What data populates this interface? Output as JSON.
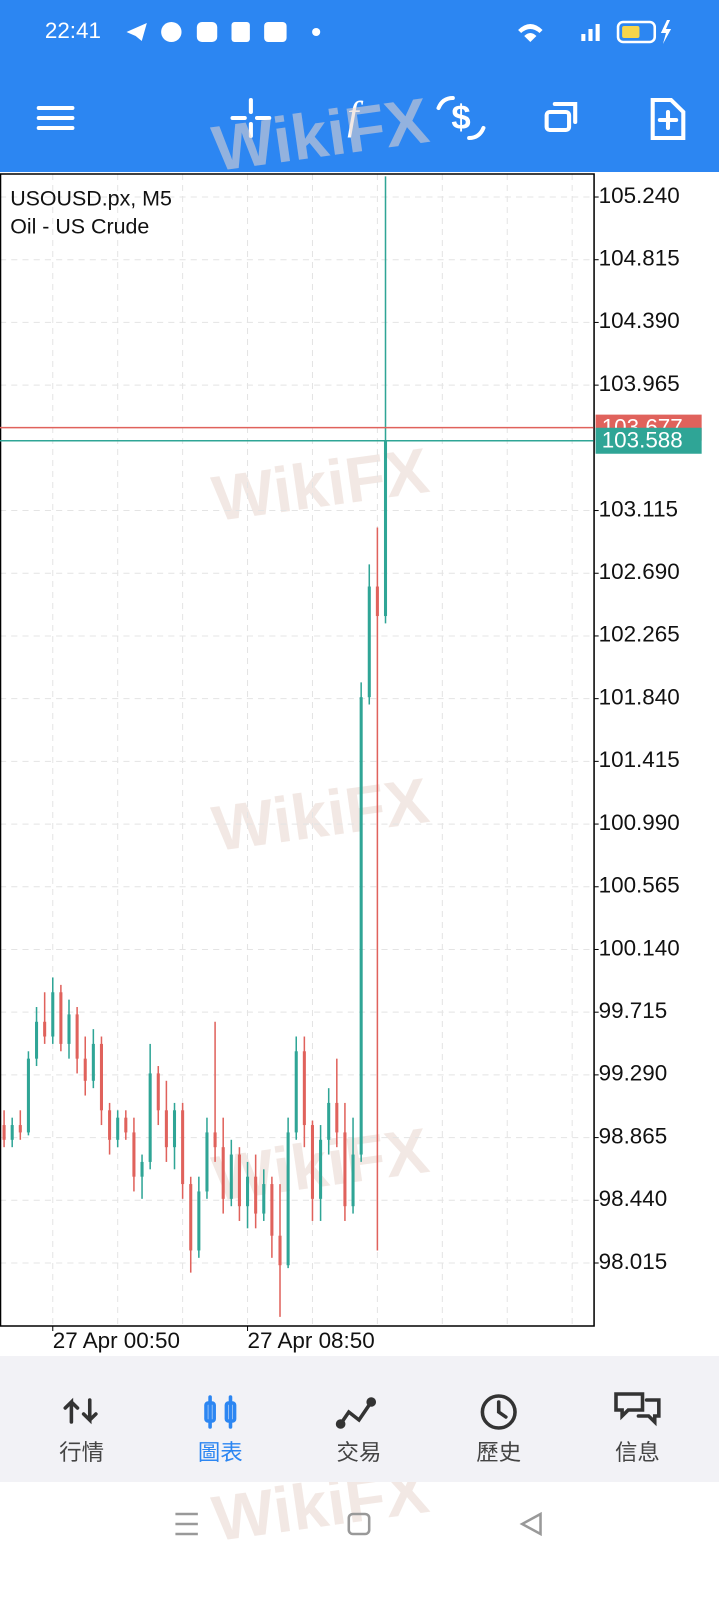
{
  "status_bar": {
    "time": "22:41"
  },
  "watermark": "WikiFX",
  "nav": {
    "items": [
      "行情",
      "圖表",
      "交易",
      "歷史",
      "信息"
    ],
    "active": 1
  },
  "chart_data": {
    "type": "candlestick",
    "title": "USOUSD.px, M5",
    "subtitle": "Oil - US Crude",
    "categories": [
      null,
      null,
      null,
      null,
      null,
      null,
      "27 Apr 00:50",
      null,
      null,
      null,
      null,
      null,
      null,
      null,
      null,
      null,
      null,
      null,
      null,
      null,
      null,
      null,
      null,
      null,
      null,
      null,
      null,
      null,
      null,
      null,
      "27 Apr 08:50",
      null,
      null,
      null,
      null,
      null,
      null,
      null,
      null,
      null,
      null,
      null,
      null,
      null,
      null,
      null,
      null,
      null
    ],
    "open": [
      98.95,
      98.85,
      98.95,
      98.9,
      99.4,
      99.65,
      99.55,
      99.85,
      99.5,
      99.7,
      99.4,
      99.25,
      99.5,
      99.05,
      98.85,
      99.0,
      98.9,
      98.6,
      98.7,
      99.3,
      99.05,
      98.8,
      99.05,
      98.55,
      98.1,
      98.5,
      98.9,
      98.8,
      98.45,
      98.75,
      98.4,
      98.6,
      98.35,
      98.55,
      98.2,
      98.0,
      98.9,
      99.45,
      98.95,
      98.45,
      98.85,
      99.1,
      98.9,
      98.4,
      98.75,
      101.85,
      102.6,
      102.4
    ],
    "high": [
      99.05,
      99.0,
      99.05,
      99.45,
      99.75,
      99.85,
      99.95,
      99.9,
      99.8,
      99.75,
      99.55,
      99.6,
      99.55,
      99.1,
      99.05,
      99.05,
      99.0,
      98.75,
      99.5,
      99.35,
      99.25,
      99.1,
      99.1,
      98.6,
      98.6,
      99.0,
      99.65,
      99.0,
      98.85,
      98.8,
      98.7,
      98.75,
      98.65,
      98.6,
      98.55,
      99.0,
      99.55,
      99.55,
      98.98,
      98.95,
      99.2,
      99.4,
      99.1,
      99.0,
      101.95,
      102.75,
      103.0,
      105.38
    ],
    "low": [
      98.8,
      98.8,
      98.85,
      98.88,
      99.35,
      99.5,
      99.5,
      99.45,
      99.4,
      99.3,
      99.15,
      99.2,
      98.95,
      98.75,
      98.8,
      98.85,
      98.5,
      98.45,
      98.65,
      98.95,
      98.7,
      98.65,
      98.45,
      97.95,
      98.05,
      98.45,
      98.7,
      98.35,
      98.4,
      98.3,
      98.25,
      98.25,
      98.3,
      98.05,
      97.65,
      97.98,
      98.85,
      98.8,
      98.3,
      98.3,
      98.75,
      98.8,
      98.3,
      98.35,
      98.7,
      101.8,
      98.1,
      102.35
    ],
    "close": [
      98.85,
      98.95,
      98.9,
      99.4,
      99.65,
      99.55,
      99.85,
      99.5,
      99.7,
      99.4,
      99.25,
      99.5,
      99.05,
      98.85,
      99.0,
      98.9,
      98.6,
      98.7,
      99.3,
      99.05,
      98.8,
      99.05,
      98.55,
      98.1,
      98.5,
      98.9,
      98.8,
      98.45,
      98.75,
      98.4,
      98.6,
      98.35,
      98.55,
      98.2,
      98.0,
      98.9,
      99.45,
      98.95,
      98.45,
      98.85,
      99.1,
      98.9,
      98.4,
      98.75,
      101.85,
      102.6,
      102.4,
      103.588
    ],
    "up_color": "#2fa596",
    "down_color": "#e0625c",
    "ylim": [
      97.588,
      105.396
    ],
    "yticks": [
      {
        "value": 105.24,
        "label": "105.240"
      },
      104.815,
      {
        "value": 104.39,
        "label": "104.390"
      },
      103.965,
      103.115,
      {
        "value": 102.69,
        "label": "102.690"
      },
      102.265,
      {
        "value": 101.84,
        "label": "101.840"
      },
      101.415,
      {
        "value": 100.99,
        "label": "100.990"
      },
      100.565,
      {
        "value": 100.14,
        "label": "100.140"
      },
      99.715,
      {
        "value": 99.29,
        "label": "99.290"
      },
      98.865,
      {
        "value": 98.44,
        "label": "98.440"
      },
      98.015
    ],
    "grid": true,
    "price_lines": [
      {
        "value": 103.677,
        "color": "#e0625c"
      },
      {
        "value": 103.588,
        "color": "#2fa596"
      }
    ]
  }
}
